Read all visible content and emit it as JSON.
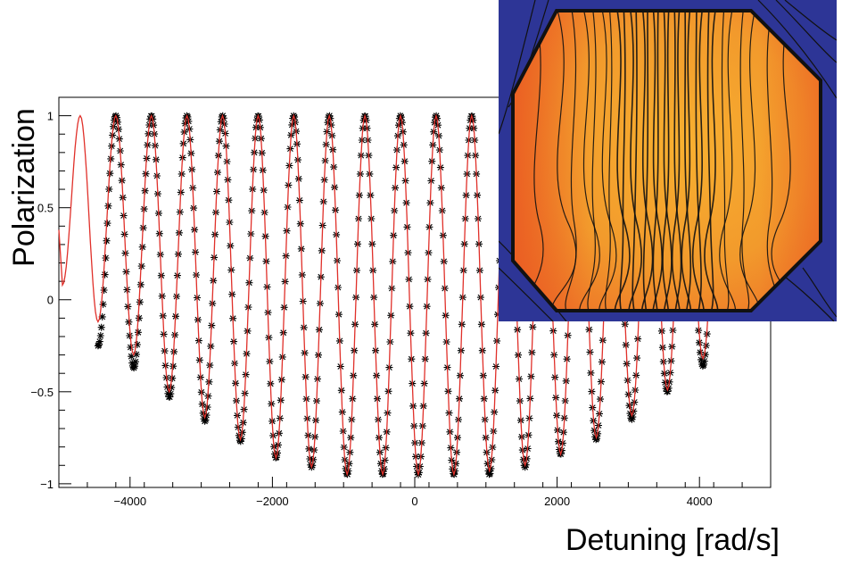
{
  "chart_data": {
    "type": "line",
    "title": "",
    "xlabel": "Detuning [rad/s]",
    "ylabel": "Polarization",
    "xlim": [
      -5000,
      5000
    ],
    "ylim": [
      -1.02,
      1.1
    ],
    "xticks": [
      -4000,
      -2000,
      0,
      2000,
      4000
    ],
    "xtick_labels": [
      "−4000",
      "−2000",
      "0",
      "2000",
      "4000"
    ],
    "yticks": [
      -1,
      -0.5,
      0,
      0.5,
      1
    ],
    "ytick_labels": [
      "−1",
      "−0.5",
      "0",
      "0.5",
      "1"
    ],
    "grid": false,
    "series": [
      {
        "kind": "measured points",
        "marker": "asterisk",
        "color": "#000000",
        "x_range": [
          -4450,
          4450
        ],
        "peak_x": [
          -4200,
          -3700,
          -3200,
          -2700,
          -2200,
          -1700,
          -1200,
          -700,
          -200,
          300,
          800,
          1300,
          1800,
          2300,
          2800,
          3300,
          3800
        ],
        "trough_x": [
          -4450,
          -3950,
          -3450,
          -2950,
          -2450,
          -1950,
          -1450,
          -950,
          -450,
          0,
          550,
          1050,
          1550,
          2050,
          2550,
          3050,
          3550,
          4050,
          4450
        ],
        "trough_y": [
          -0.25,
          -0.37,
          -0.53,
          -0.66,
          -0.77,
          -0.86,
          -0.91,
          -0.95,
          -0.95,
          -0.95,
          -0.95,
          -0.95,
          -0.91,
          -0.84,
          -0.76,
          -0.65,
          -0.5,
          -0.36,
          -0.26
        ]
      },
      {
        "kind": "fit curve",
        "color": "#e0302a",
        "peaks": [
          {
            "x": -4700,
            "y": 1.0
          },
          {
            "x": -4200,
            "y": 1.0
          },
          {
            "x": -3700,
            "y": 1.0
          },
          {
            "x": -3200,
            "y": 1.0
          },
          {
            "x": -2700,
            "y": 1.0
          },
          {
            "x": -2200,
            "y": 1.0
          },
          {
            "x": -1700,
            "y": 1.0
          },
          {
            "x": -1200,
            "y": 1.0
          },
          {
            "x": -700,
            "y": 1.0
          },
          {
            "x": -200,
            "y": 1.0
          },
          {
            "x": 300,
            "y": 1.0
          },
          {
            "x": 800,
            "y": 1.0
          },
          {
            "x": 1300,
            "y": 1.0
          },
          {
            "x": 1800,
            "y": 1.0
          },
          {
            "x": 2300,
            "y": 1.0
          },
          {
            "x": 2800,
            "y": 1.0
          },
          {
            "x": 3300,
            "y": 1.0
          },
          {
            "x": 3800,
            "y": 1.0
          },
          {
            "x": 4300,
            "y": 1.0
          }
        ],
        "troughs": [
          {
            "x": -4950,
            "y": 0.08
          },
          {
            "x": -4450,
            "y": -0.12
          },
          {
            "x": -3950,
            "y": -0.3
          },
          {
            "x": -3450,
            "y": -0.5
          },
          {
            "x": -2950,
            "y": -0.64
          },
          {
            "x": -2450,
            "y": -0.76
          },
          {
            "x": -1950,
            "y": -0.86
          },
          {
            "x": -1450,
            "y": -0.91
          },
          {
            "x": -950,
            "y": -0.95
          },
          {
            "x": -450,
            "y": -0.95
          },
          {
            "x": 50,
            "y": -0.95
          },
          {
            "x": 550,
            "y": -0.95
          },
          {
            "x": 1050,
            "y": -0.93
          },
          {
            "x": 1550,
            "y": -0.9
          },
          {
            "x": 2050,
            "y": -0.84
          },
          {
            "x": 2550,
            "y": -0.75
          },
          {
            "x": 3050,
            "y": -0.63
          },
          {
            "x": 3550,
            "y": -0.49
          },
          {
            "x": 4050,
            "y": -0.32
          }
        ]
      }
    ]
  },
  "inset": {
    "description_name": "field-map-inset",
    "background_color": "#2d3596",
    "octagon_fill_colors": [
      "#f6a72a",
      "#f08a2a",
      "#ee5e22"
    ],
    "line_color": "#111111"
  }
}
